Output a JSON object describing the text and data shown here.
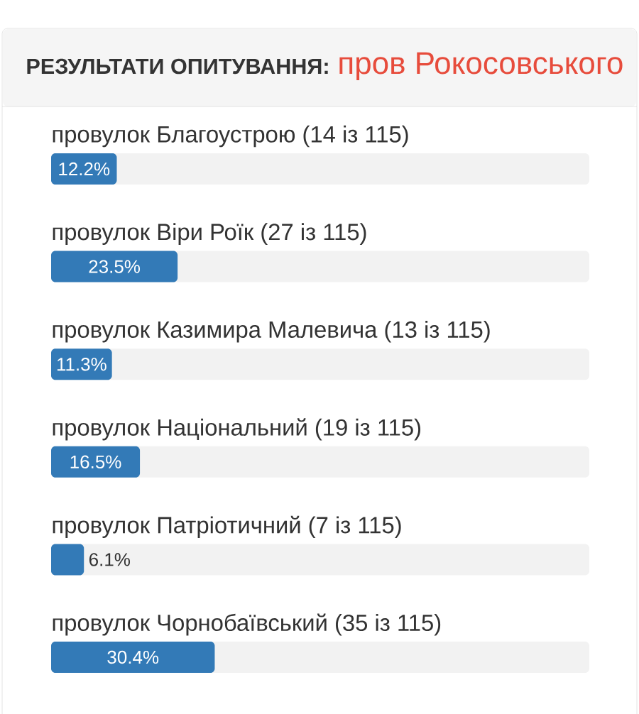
{
  "chart_data": {
    "type": "bar",
    "orientation": "horizontal",
    "title": "РЕЗУЛЬТАТИ ОПИТУВАННЯ:",
    "subtitle": "пров Рокосовського",
    "categories": [
      "провулок Благоустрою (14 із 115)",
      "провулок Віри Роїк (27 із 115)",
      "провулок Казимира Малевича (13 із 115)",
      "провулок Національний (19 із 115)",
      "провулок Патріотичний (7 із 115)",
      "провулок Чорнобаївський (35 із 115)"
    ],
    "values": [
      12.2,
      23.5,
      11.3,
      16.5,
      6.1,
      30.4
    ],
    "value_labels": [
      "12.2%",
      "23.5%",
      "11.3%",
      "16.5%",
      "6.1%",
      "30.4%"
    ],
    "color": "#337ab7",
    "xlim": [
      0,
      100
    ],
    "tick_labels": "y"
  }
}
